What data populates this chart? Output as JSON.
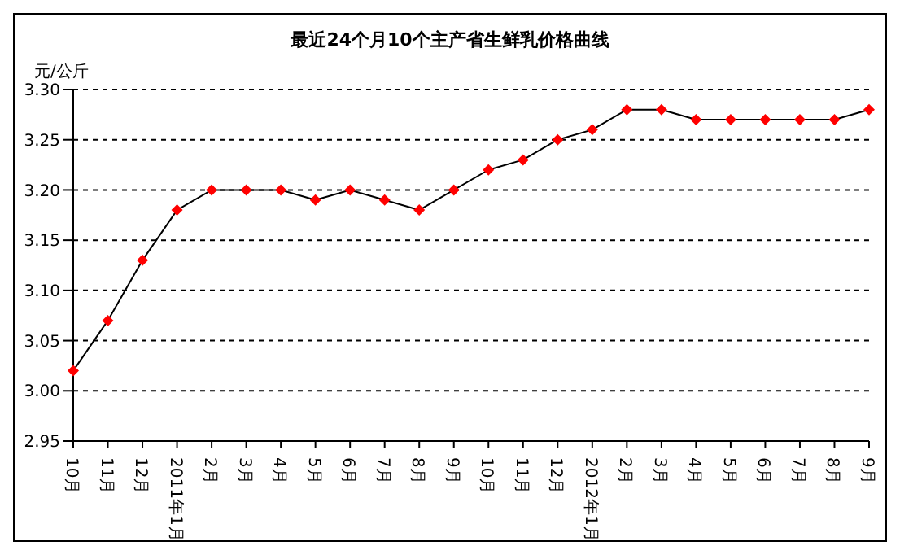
{
  "chart_data": {
    "type": "line",
    "title": "最近24个月10个主产省生鲜乳价格曲线",
    "ylabel": "元/公斤",
    "categories": [
      "10月",
      "11月",
      "12月",
      "2011年1月",
      "2月",
      "3月",
      "4月",
      "5月",
      "6月",
      "7月",
      "8月",
      "9月",
      "10月",
      "11月",
      "12月",
      "2012年1月",
      "2月",
      "3月",
      "4月",
      "5月",
      "6月",
      "7月",
      "8月",
      "9月"
    ],
    "series": [
      {
        "color": "#ff0000",
        "values": [
          3.02,
          3.07,
          3.13,
          3.18,
          3.2,
          3.2,
          3.2,
          3.19,
          3.2,
          3.19,
          3.18,
          3.2,
          3.22,
          3.23,
          3.25,
          3.26,
          3.28,
          3.28,
          3.27,
          3.27,
          3.27,
          3.27,
          3.27,
          3.28
        ]
      }
    ],
    "ylim": [
      2.95,
      3.3
    ],
    "yticks": [
      2.95,
      {
        "value": 3,
        "label": "3.00"
      },
      3.05,
      {
        "value": 3.1,
        "label": "3.10"
      },
      3.15,
      {
        "value": 3.2,
        "label": "3.20"
      },
      3.25,
      {
        "value": 3.3,
        "label": "3.30"
      }
    ],
    "grid": "y",
    "marker": "diamond",
    "line_style": "solid"
  }
}
